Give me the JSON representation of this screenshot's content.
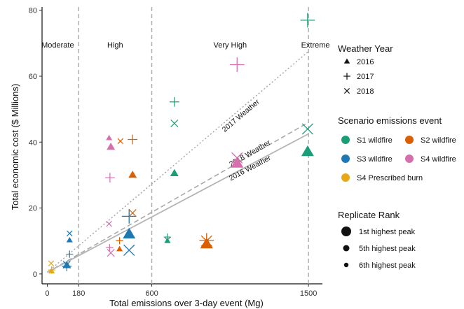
{
  "chart_data": {
    "type": "scatter",
    "xlabel": "Total emissions over 3-day event (Mg)",
    "ylabel": "Total economic cost ($ Millions)",
    "xlim": [
      -30,
      1580
    ],
    "ylim": [
      -3,
      81
    ],
    "x_ticks": [
      0,
      180,
      600,
      1500
    ],
    "y_ticks": [
      0,
      20,
      40,
      60,
      80
    ],
    "thresholds": [
      180,
      600,
      1500
    ],
    "regions": [
      {
        "label": "Moderate",
        "x": 60
      },
      {
        "label": "High",
        "x": 390
      },
      {
        "label": "Very High",
        "x": 1050
      },
      {
        "label": "Extreme",
        "x": 1540
      }
    ],
    "fit_lines": [
      {
        "name": "2017 Weather",
        "style": "dotted",
        "x0": 0,
        "y0": 0.5,
        "x1": 1500,
        "y1": 67.5
      },
      {
        "name": "2018 Weather",
        "style": "dashed",
        "x0": 0,
        "y0": 0.5,
        "x1": 1500,
        "y1": 46
      },
      {
        "name": "2016 Weather",
        "style": "solid",
        "x0": 0,
        "y0": 0.5,
        "x1": 1500,
        "y1": 42.5
      }
    ],
    "legend": {
      "year": {
        "title": "Weather Year",
        "items": [
          {
            "label": "2016",
            "shape": "triangle"
          },
          {
            "label": "2017",
            "shape": "plus"
          },
          {
            "label": "2018",
            "shape": "cross"
          }
        ]
      },
      "scenario": {
        "title": "Scenario emissions event",
        "items": [
          {
            "label": "S1 wildfire",
            "color": "#1a9e77"
          },
          {
            "label": "S2 wildfire",
            "color": "#d95f02"
          },
          {
            "label": "S3 wildfire",
            "color": "#1f78b4"
          },
          {
            "label": "S4 wildfire",
            "color": "#d66fae"
          },
          {
            "label": "S4 Prescribed burn",
            "color": "#e6a817"
          }
        ]
      },
      "rank": {
        "title": "Replicate Rank",
        "items": [
          {
            "label": "1st highest peak",
            "size": 3
          },
          {
            "label": "5th highest peak",
            "size": 2
          },
          {
            "label": "6th highest peak",
            "size": 1
          }
        ]
      }
    },
    "colors": {
      "S1": "#1a9e77",
      "S2": "#d95f02",
      "S3": "#1f78b4",
      "S4": "#d66fae",
      "S4P": "#e6a817"
    },
    "points": [
      {
        "s": "S4P",
        "year": 2016,
        "rank": 1,
        "x": 25,
        "y": 0.8
      },
      {
        "s": "S4P",
        "year": 2017,
        "rank": 1,
        "x": 25,
        "y": 1.2
      },
      {
        "s": "S4P",
        "year": 2018,
        "rank": 1,
        "x": 22,
        "y": 3.2
      },
      {
        "s": "S3",
        "year": 2016,
        "rank": 2,
        "x": 112,
        "y": 2.6
      },
      {
        "s": "S3",
        "year": 2017,
        "rank": 2,
        "x": 112,
        "y": 2.3
      },
      {
        "s": "S3",
        "year": 2018,
        "rank": 2,
        "x": 112,
        "y": 2.8
      },
      {
        "s": "S3",
        "year": 2016,
        "rank": 1,
        "x": 128,
        "y": 10.2
      },
      {
        "s": "S3",
        "year": 2017,
        "rank": 1,
        "x": 128,
        "y": 6.0
      },
      {
        "s": "S3",
        "year": 2018,
        "rank": 1,
        "x": 128,
        "y": 12.3
      },
      {
        "s": "S3",
        "year": 2016,
        "rank": 3,
        "x": 470,
        "y": 12.0
      },
      {
        "s": "S3",
        "year": 2017,
        "rank": 3,
        "x": 470,
        "y": 17.5
      },
      {
        "s": "S3",
        "year": 2018,
        "rank": 3,
        "x": 470,
        "y": 7.2
      },
      {
        "s": "S4",
        "year": 2016,
        "rank": 1,
        "x": 355,
        "y": 41.2
      },
      {
        "s": "S4",
        "year": 2016,
        "rank": 2,
        "x": 365,
        "y": 38.5
      },
      {
        "s": "S4",
        "year": 2017,
        "rank": 2,
        "x": 360,
        "y": 29.2
      },
      {
        "s": "S4",
        "year": 2018,
        "rank": 1,
        "x": 355,
        "y": 15.2
      },
      {
        "s": "S4",
        "year": 2017,
        "rank": 1,
        "x": 358,
        "y": 8.0
      },
      {
        "s": "S4",
        "year": 2018,
        "rank": 2,
        "x": 365,
        "y": 6.4
      },
      {
        "s": "S4",
        "year": 2016,
        "rank": 3,
        "x": 1090,
        "y": 33.5
      },
      {
        "s": "S4",
        "year": 2017,
        "rank": 3,
        "x": 1090,
        "y": 63.5
      },
      {
        "s": "S4",
        "year": 2018,
        "rank": 3,
        "x": 1090,
        "y": 35.2
      },
      {
        "s": "S2",
        "year": 2017,
        "rank": 1,
        "x": 415,
        "y": 10.1
      },
      {
        "s": "S2",
        "year": 2016,
        "rank": 1,
        "x": 415,
        "y": 7.5
      },
      {
        "s": "S2",
        "year": 2018,
        "rank": 1,
        "x": 420,
        "y": 40.3
      },
      {
        "s": "S2",
        "year": 2017,
        "rank": 2,
        "x": 490,
        "y": 40.8
      },
      {
        "s": "S2",
        "year": 2016,
        "rank": 2,
        "x": 490,
        "y": 30.0
      },
      {
        "s": "S2",
        "year": 2018,
        "rank": 2,
        "x": 490,
        "y": 18.5
      },
      {
        "s": "S2",
        "year": 2016,
        "rank": 3,
        "x": 915,
        "y": 9.0
      },
      {
        "s": "S2",
        "year": 2017,
        "rank": 3,
        "x": 915,
        "y": 10.2
      },
      {
        "s": "S2",
        "year": 2018,
        "rank": 3,
        "x": 915,
        "y": 10.0
      },
      {
        "s": "S1",
        "year": 2016,
        "rank": 1,
        "x": 690,
        "y": 10.0
      },
      {
        "s": "S1",
        "year": 2017,
        "rank": 1,
        "x": 690,
        "y": 11.2
      },
      {
        "s": "S1",
        "year": 2018,
        "rank": 1,
        "x": 690,
        "y": 10.3
      },
      {
        "s": "S1",
        "year": 2017,
        "rank": 2,
        "x": 730,
        "y": 52.2
      },
      {
        "s": "S1",
        "year": 2018,
        "rank": 2,
        "x": 730,
        "y": 45.7
      },
      {
        "s": "S1",
        "year": 2016,
        "rank": 2,
        "x": 730,
        "y": 30.5
      },
      {
        "s": "S1",
        "year": 2016,
        "rank": 3,
        "x": 1495,
        "y": 37.0
      },
      {
        "s": "S1",
        "year": 2017,
        "rank": 3,
        "x": 1495,
        "y": 77.0
      },
      {
        "s": "S1",
        "year": 2018,
        "rank": 3,
        "x": 1495,
        "y": 44.0
      }
    ]
  }
}
